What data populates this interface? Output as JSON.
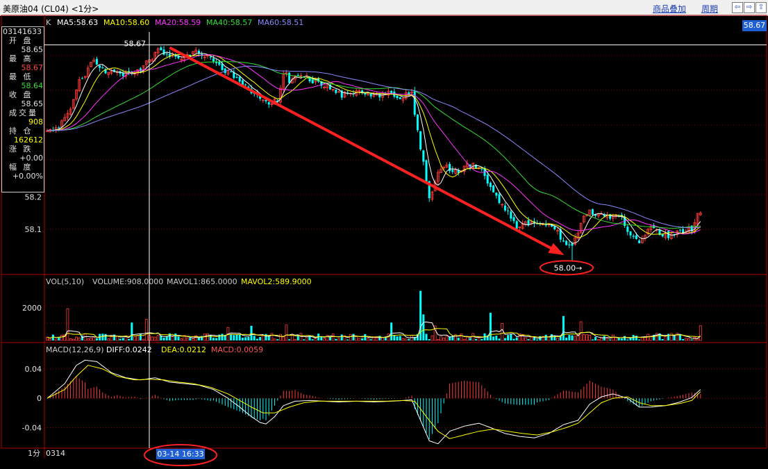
{
  "window": {
    "title": "美原油04 (CL04) <1分>",
    "link_overlay": "商品叠加",
    "link_period": "周期"
  },
  "nav_buttons": [
    "⇦",
    "⇨",
    "⇧",
    "⇩"
  ],
  "chart_data": [
    {
      "type": "candlestick",
      "title": "K",
      "indicators": [
        {
          "name": "MA5",
          "value": "58.63",
          "color": "#ffffff"
        },
        {
          "name": "MA10",
          "value": "58.60",
          "color": "#ffff00"
        },
        {
          "name": "MA20",
          "value": "58.59",
          "color": "#ff33ff"
        },
        {
          "name": "MA40",
          "value": "58.57",
          "color": "#33dd33"
        },
        {
          "name": "MA60",
          "value": "58.51",
          "color": "#8a8aff"
        }
      ],
      "y_ticks": [
        "58.2",
        "58.1"
      ],
      "ylim": [
        57.96,
        58.71
      ],
      "high_annotation": "58.67",
      "low_annotation": "58.00→",
      "last_price": "58.67",
      "close_path": [
        [
          0,
          58.4
        ],
        [
          4,
          58.42
        ],
        [
          8,
          58.48
        ],
        [
          11,
          58.56
        ],
        [
          13,
          58.58
        ],
        [
          16,
          58.63
        ],
        [
          18,
          58.6
        ],
        [
          21,
          58.58
        ],
        [
          26,
          58.58
        ],
        [
          31,
          58.59
        ],
        [
          36,
          58.63
        ],
        [
          38,
          58.66
        ],
        [
          42,
          58.64
        ],
        [
          47,
          58.63
        ],
        [
          51,
          58.65
        ],
        [
          56,
          58.63
        ],
        [
          61,
          58.59
        ],
        [
          66,
          58.56
        ],
        [
          71,
          58.52
        ],
        [
          75,
          58.49
        ],
        [
          79,
          58.5
        ],
        [
          81,
          58.59
        ],
        [
          83,
          58.56
        ],
        [
          86,
          58.58
        ],
        [
          91,
          58.56
        ],
        [
          96,
          58.54
        ],
        [
          101,
          58.51
        ],
        [
          106,
          58.53
        ],
        [
          111,
          58.51
        ],
        [
          116,
          58.52
        ],
        [
          121,
          58.51
        ],
        [
          125,
          58.52
        ],
        [
          127,
          58.4
        ],
        [
          129,
          58.3
        ],
        [
          131,
          58.2
        ],
        [
          134,
          58.27
        ],
        [
          137,
          58.29
        ],
        [
          141,
          58.28
        ],
        [
          145,
          58.3
        ],
        [
          149,
          58.28
        ],
        [
          151,
          58.25
        ],
        [
          154,
          58.2
        ],
        [
          158,
          58.15
        ],
        [
          161,
          58.1
        ],
        [
          163,
          58.12
        ],
        [
          166,
          58.12
        ],
        [
          171,
          58.11
        ],
        [
          174,
          58.1
        ],
        [
          177,
          58.06
        ],
        [
          180,
          58.05
        ],
        [
          182,
          58.08
        ],
        [
          184,
          58.15
        ],
        [
          188,
          58.15
        ],
        [
          193,
          58.14
        ],
        [
          196,
          58.15
        ],
        [
          199,
          58.1
        ],
        [
          202,
          58.06
        ],
        [
          204,
          58.07
        ],
        [
          207,
          58.1
        ],
        [
          212,
          58.08
        ],
        [
          217,
          58.09
        ],
        [
          221,
          58.1
        ],
        [
          223,
          58.14
        ],
        [
          224,
          58.15
        ]
      ],
      "overall_high": 58.67,
      "overall_low": 58.0
    },
    {
      "type": "bar",
      "title": "VOL(5,10)",
      "indicators": [
        {
          "name": "VOLUME",
          "value": "908.0000",
          "color": "#cccccc"
        },
        {
          "name": "MAVOL1",
          "value": "865.0000",
          "color": "#cccccc"
        },
        {
          "name": "MAVOL2",
          "value": "589.9000",
          "color": "#ffff00"
        }
      ],
      "y_ticks": [
        "2000"
      ],
      "ylim": [
        0,
        3200
      ],
      "spike_volumes": [
        [
          7,
          1950
        ],
        [
          29,
          1100
        ],
        [
          34,
          1300
        ],
        [
          62,
          800
        ],
        [
          70,
          900
        ],
        [
          82,
          950
        ],
        [
          118,
          1100
        ],
        [
          128,
          3050
        ],
        [
          129,
          1600
        ],
        [
          133,
          900
        ],
        [
          152,
          1700
        ],
        [
          156,
          1050
        ],
        [
          177,
          1500
        ],
        [
          183,
          1150
        ]
      ],
      "last_volume": 908
    },
    {
      "type": "line",
      "title": "MACD(12,26,9)",
      "indicators": [
        {
          "name": "DIFF",
          "value": "0.0242",
          "color": "#ffffff"
        },
        {
          "name": "DEA",
          "value": "0.0212",
          "color": "#ffff00"
        },
        {
          "name": "MACD",
          "value": "0.0059",
          "color": "#ff5555"
        }
      ],
      "y_ticks": [
        "0.04",
        "0",
        "-0.04"
      ],
      "ylim": [
        -0.068,
        0.058
      ],
      "diff_path": [
        [
          0,
          0.0
        ],
        [
          6,
          0.02
        ],
        [
          10,
          0.045
        ],
        [
          13,
          0.052
        ],
        [
          17,
          0.05
        ],
        [
          22,
          0.035
        ],
        [
          27,
          0.028
        ],
        [
          32,
          0.025
        ],
        [
          37,
          0.028
        ],
        [
          42,
          0.022
        ],
        [
          47,
          0.02
        ],
        [
          52,
          0.018
        ],
        [
          57,
          0.012
        ],
        [
          62,
          0.0
        ],
        [
          66,
          -0.012
        ],
        [
          70,
          -0.025
        ],
        [
          73,
          -0.033
        ],
        [
          75,
          -0.035
        ],
        [
          78,
          -0.025
        ],
        [
          81,
          -0.01
        ],
        [
          85,
          -0.004
        ],
        [
          90,
          -0.003
        ],
        [
          95,
          -0.004
        ],
        [
          100,
          -0.005
        ],
        [
          106,
          -0.004
        ],
        [
          112,
          -0.005
        ],
        [
          118,
          -0.004
        ],
        [
          122,
          -0.003
        ],
        [
          125,
          -0.002
        ],
        [
          128,
          -0.03
        ],
        [
          131,
          -0.058
        ],
        [
          134,
          -0.062
        ],
        [
          138,
          -0.045
        ],
        [
          143,
          -0.038
        ],
        [
          148,
          -0.034
        ],
        [
          152,
          -0.04
        ],
        [
          157,
          -0.048
        ],
        [
          162,
          -0.052
        ],
        [
          167,
          -0.054
        ],
        [
          172,
          -0.048
        ],
        [
          177,
          -0.036
        ],
        [
          182,
          -0.03
        ],
        [
          186,
          -0.008
        ],
        [
          190,
          0.002
        ],
        [
          194,
          0.006
        ],
        [
          199,
          0.0
        ],
        [
          203,
          -0.012
        ],
        [
          207,
          -0.012
        ],
        [
          212,
          -0.01
        ],
        [
          217,
          -0.005
        ],
        [
          221,
          0.001
        ],
        [
          224,
          0.012
        ]
      ],
      "dea_path": [
        [
          0,
          0.0
        ],
        [
          6,
          0.012
        ],
        [
          10,
          0.03
        ],
        [
          14,
          0.045
        ],
        [
          19,
          0.04
        ],
        [
          24,
          0.03
        ],
        [
          30,
          0.025
        ],
        [
          35,
          0.026
        ],
        [
          40,
          0.025
        ],
        [
          45,
          0.022
        ],
        [
          50,
          0.02
        ],
        [
          56,
          0.015
        ],
        [
          62,
          0.006
        ],
        [
          66,
          -0.003
        ],
        [
          70,
          -0.012
        ],
        [
          74,
          -0.02
        ],
        [
          78,
          -0.02
        ],
        [
          83,
          -0.012
        ],
        [
          88,
          -0.006
        ],
        [
          93,
          -0.004
        ],
        [
          100,
          -0.004
        ],
        [
          108,
          -0.004
        ],
        [
          116,
          -0.004
        ],
        [
          122,
          -0.003
        ],
        [
          126,
          -0.004
        ],
        [
          130,
          -0.025
        ],
        [
          134,
          -0.045
        ],
        [
          138,
          -0.055
        ],
        [
          143,
          -0.05
        ],
        [
          148,
          -0.045
        ],
        [
          153,
          -0.042
        ],
        [
          158,
          -0.045
        ],
        [
          163,
          -0.048
        ],
        [
          168,
          -0.05
        ],
        [
          173,
          -0.046
        ],
        [
          178,
          -0.04
        ],
        [
          182,
          -0.034
        ],
        [
          186,
          -0.02
        ],
        [
          190,
          -0.006
        ],
        [
          194,
          0.0
        ],
        [
          199,
          0.002
        ],
        [
          203,
          -0.006
        ],
        [
          207,
          -0.01
        ],
        [
          212,
          -0.01
        ],
        [
          217,
          -0.007
        ],
        [
          221,
          -0.003
        ],
        [
          224,
          0.009
        ]
      ]
    }
  ],
  "x_axis": {
    "period_label": "1分",
    "start_label": "0314",
    "cursor_time": "03-14 16:33"
  },
  "crosshair_index": 35,
  "infobox": {
    "code": "03141633",
    "rows": [
      {
        "label": "开 盘",
        "value": "58.65",
        "color": "#e0e0e0"
      },
      {
        "label": "最 高",
        "value": "58.67",
        "color": "#ff4444"
      },
      {
        "label": "最 低",
        "value": "58.64",
        "color": "#33dd33"
      },
      {
        "label": "收 盘",
        "value": "58.65",
        "color": "#e0e0e0"
      },
      {
        "label": "成交量",
        "value": "908",
        "color": "#ffff00"
      },
      {
        "label": "持 仓",
        "value": "162612",
        "color": "#ffff00"
      },
      {
        "label": "涨 跌",
        "value": "+0.00",
        "color": "#e0e0e0"
      },
      {
        "label": "幅 度",
        "value": "+0.00%",
        "color": "#e0e0e0"
      }
    ]
  },
  "colors": {
    "up": "#ff3b3b",
    "down": "#00ffff",
    "grid": "#8b0000",
    "axis": "#b00000",
    "trend_arrow": "#ff2020"
  }
}
